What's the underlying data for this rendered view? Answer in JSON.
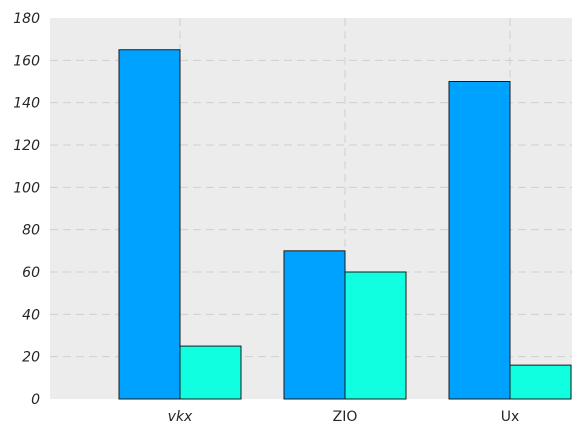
{
  "chart_data": {
    "type": "bar",
    "categories": [
      "vkx",
      "ZIO",
      "Ux"
    ],
    "category_italic": [
      true,
      false,
      false
    ],
    "series": [
      {
        "values": [
          165,
          70,
          150
        ],
        "color": "#00a2ff"
      },
      {
        "values": [
          25,
          60,
          16
        ],
        "color": "#10ffe0"
      }
    ],
    "ylim": [
      0,
      180
    ],
    "yticks": [
      0,
      20,
      40,
      60,
      80,
      100,
      120,
      140,
      160,
      180
    ],
    "grid": true,
    "background": "#ececec",
    "title": "",
    "xlabel": "",
    "ylabel": ""
  }
}
